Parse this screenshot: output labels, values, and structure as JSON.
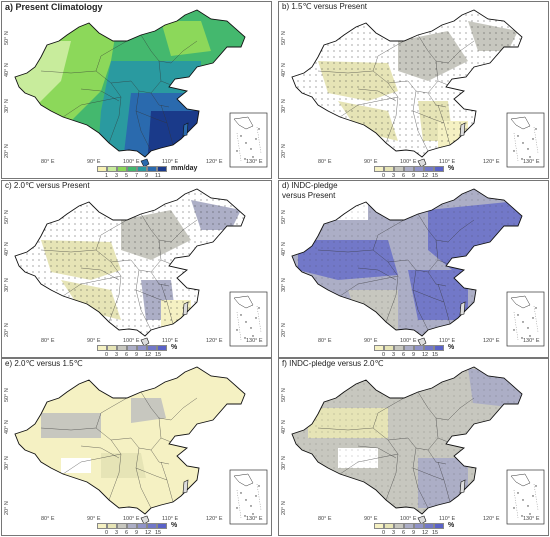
{
  "panels": [
    {
      "id": "a",
      "title": "a) Present Climatology",
      "title2": "",
      "legend": {
        "unit": "mm/day",
        "ticks": [
          "1",
          "3",
          "5",
          "7",
          "9",
          "11"
        ],
        "colors": [
          "#f8f2b4",
          "#c8ec9c",
          "#8cd85a",
          "#44b86e",
          "#2a9aa0",
          "#2a6aae",
          "#1a3a8a"
        ]
      }
    },
    {
      "id": "b",
      "title": "b) 1.5℃ versus Present",
      "title2": "",
      "legend": {
        "unit": "%",
        "ticks": [
          "0",
          "3",
          "6",
          "9",
          "12",
          "15"
        ],
        "colors": [
          "#f5f1c3",
          "#e6e4b6",
          "#c7c7bf",
          "#acaec6",
          "#9093c8",
          "#7278c8",
          "#5a62c8"
        ]
      }
    },
    {
      "id": "c",
      "title": "c) 2.0℃ versus Present",
      "title2": "",
      "legend": {
        "unit": "%",
        "ticks": [
          "0",
          "3",
          "6",
          "9",
          "12",
          "15"
        ],
        "colors": [
          "#f5f1c3",
          "#e6e4b6",
          "#c7c7bf",
          "#acaec6",
          "#9093c8",
          "#7278c8",
          "#5a62c8"
        ]
      }
    },
    {
      "id": "d",
      "title": "d) INDC-pledge",
      "title2": "versus Present",
      "legend": {
        "unit": "%",
        "ticks": [
          "0",
          "3",
          "6",
          "9",
          "12",
          "15"
        ],
        "colors": [
          "#f5f1c3",
          "#e6e4b6",
          "#c7c7bf",
          "#acaec6",
          "#9093c8",
          "#7278c8",
          "#5a62c8"
        ]
      }
    },
    {
      "id": "e",
      "title": "e) 2.0℃ versus 1.5℃",
      "title2": "",
      "legend": {
        "unit": "%",
        "ticks": [
          "0",
          "3",
          "6",
          "9",
          "12",
          "15"
        ],
        "colors": [
          "#f5f1c3",
          "#e6e4b6",
          "#c7c7bf",
          "#acaec6",
          "#9093c8",
          "#7278c8",
          "#5a62c8"
        ]
      }
    },
    {
      "id": "f",
      "title": "f) INDC-pledge versus 2.0℃",
      "title2": "",
      "legend": {
        "unit": "%",
        "ticks": [
          "0",
          "3",
          "6",
          "9",
          "12",
          "15"
        ],
        "colors": [
          "#f5f1c3",
          "#e6e4b6",
          "#c7c7bf",
          "#acaec6",
          "#9093c8",
          "#7278c8",
          "#5a62c8"
        ]
      }
    }
  ],
  "axes": {
    "lat_labels": [
      "50° N",
      "40° N",
      "30° N",
      "20° N"
    ],
    "lon_labels": [
      "80° E",
      "90° E",
      "100° E",
      "110° E",
      "120° E",
      "130° E"
    ]
  }
}
